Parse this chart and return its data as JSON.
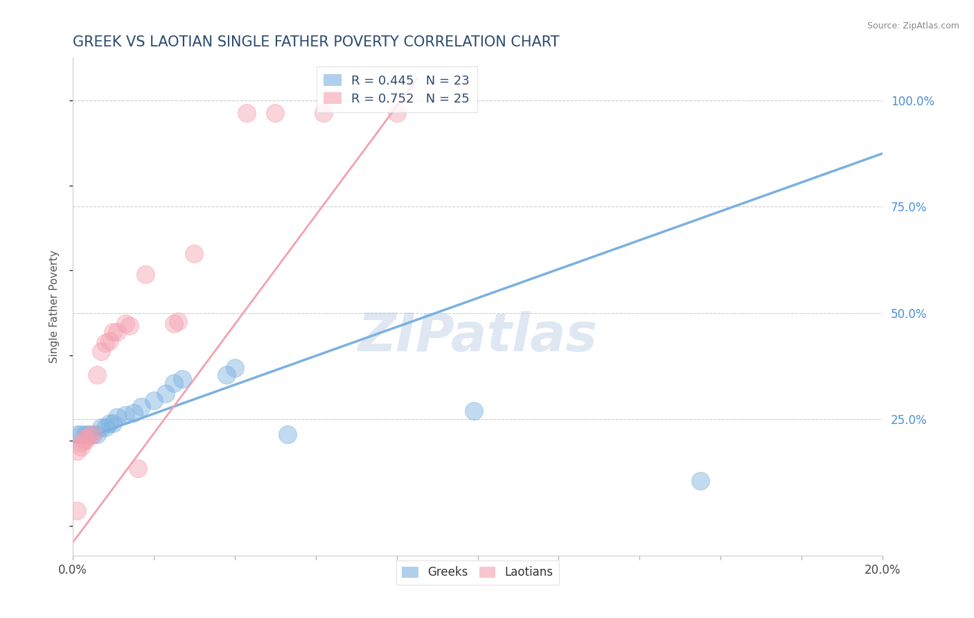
{
  "title": "GREEK VS LAOTIAN SINGLE FATHER POVERTY CORRELATION CHART",
  "source": "Source: ZipAtlas.com",
  "ylabel": "Single Father Poverty",
  "watermark": "ZIPatlas",
  "xlim": [
    0.0,
    0.2
  ],
  "ylim": [
    -0.07,
    1.1
  ],
  "xticks": [
    0.0,
    0.02,
    0.04,
    0.06,
    0.08,
    0.1,
    0.12,
    0.14,
    0.16,
    0.18,
    0.2
  ],
  "xticklabels": [
    "0.0%",
    "",
    "",
    "",
    "",
    "",
    "",
    "",
    "",
    "",
    "20.0%"
  ],
  "yticks_right": [
    0.25,
    0.5,
    0.75,
    1.0
  ],
  "ytick_right_labels": [
    "25.0%",
    "50.0%",
    "75.0%",
    "100.0%"
  ],
  "grid_color": "#cccccc",
  "blue_color": "#7ab0e0",
  "pink_color": "#f4a0b0",
  "blue_scatter": [
    [
      0.001,
      0.215
    ],
    [
      0.002,
      0.215
    ],
    [
      0.003,
      0.215
    ],
    [
      0.004,
      0.215
    ],
    [
      0.005,
      0.215
    ],
    [
      0.006,
      0.215
    ],
    [
      0.007,
      0.23
    ],
    [
      0.008,
      0.23
    ],
    [
      0.009,
      0.24
    ],
    [
      0.01,
      0.24
    ],
    [
      0.011,
      0.255
    ],
    [
      0.013,
      0.26
    ],
    [
      0.015,
      0.265
    ],
    [
      0.017,
      0.28
    ],
    [
      0.02,
      0.295
    ],
    [
      0.023,
      0.31
    ],
    [
      0.025,
      0.335
    ],
    [
      0.027,
      0.345
    ],
    [
      0.038,
      0.355
    ],
    [
      0.04,
      0.37
    ],
    [
      0.053,
      0.215
    ],
    [
      0.099,
      0.27
    ],
    [
      0.155,
      0.105
    ]
  ],
  "pink_scatter": [
    [
      0.001,
      0.175
    ],
    [
      0.002,
      0.185
    ],
    [
      0.002,
      0.195
    ],
    [
      0.003,
      0.2
    ],
    [
      0.003,
      0.205
    ],
    [
      0.004,
      0.21
    ],
    [
      0.005,
      0.215
    ],
    [
      0.006,
      0.355
    ],
    [
      0.007,
      0.41
    ],
    [
      0.008,
      0.43
    ],
    [
      0.009,
      0.435
    ],
    [
      0.01,
      0.455
    ],
    [
      0.011,
      0.455
    ],
    [
      0.013,
      0.475
    ],
    [
      0.014,
      0.47
    ],
    [
      0.016,
      0.135
    ],
    [
      0.018,
      0.59
    ],
    [
      0.025,
      0.475
    ],
    [
      0.026,
      0.48
    ],
    [
      0.03,
      0.64
    ],
    [
      0.043,
      0.97
    ],
    [
      0.05,
      0.97
    ],
    [
      0.062,
      0.97
    ],
    [
      0.08,
      0.97
    ],
    [
      0.001,
      0.035
    ]
  ],
  "blue_line": [
    [
      0.0,
      0.195
    ],
    [
      0.2,
      0.875
    ]
  ],
  "pink_line": [
    [
      0.0,
      -0.04
    ],
    [
      0.085,
      1.05
    ]
  ],
  "blue_R": 0.445,
  "blue_N": 23,
  "pink_R": 0.752,
  "pink_N": 25,
  "legend_labels": [
    "Greeks",
    "Laotians"
  ],
  "title_color": "#2c4a6e",
  "axis_label_color": "#555555",
  "tick_color_right": "#4a90d9",
  "title_fontsize": 15,
  "label_fontsize": 11
}
